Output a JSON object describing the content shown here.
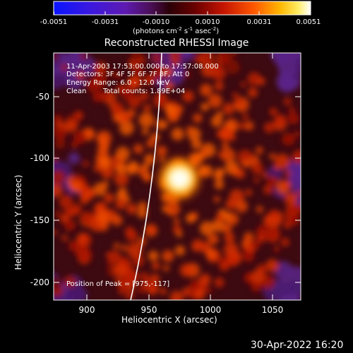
{
  "colorbar": {
    "tick_labels": [
      "-0.0051",
      "-0.0031",
      "-0.0010",
      "0.0010",
      "0.0031",
      "0.0051"
    ],
    "units_base": "(photons cm",
    "units_exp1": "-2",
    "units_mid1": " s",
    "units_exp2": "-1",
    "units_mid2": " asec",
    "units_exp3": "-2",
    "units_end": ")"
  },
  "title": "Reconstructed RHESSI Image",
  "annotations": {
    "time_range": "11-Apr-2003 17:53:00.000 to 17:57:08.000",
    "detectors": "Detectors: 3F 4F 5F 6F 7F 8F, Att 0",
    "energy_range": "Energy Range: 6.0 - 12.0 keV",
    "algorithm": "Clean",
    "total_counts": "Total counts: 1.89E+04",
    "peak_position": "Position of Peak = [975,-117]"
  },
  "axes": {
    "xlabel": "Heliocentric X (arcsec)",
    "ylabel": "Heliocentric Y (arcsec)",
    "x_ticks": [
      "900",
      "950",
      "1000",
      "1050"
    ],
    "y_ticks": [
      "-50",
      "-100",
      "-150",
      "-200"
    ]
  },
  "footer": {
    "timestamp": "30-Apr-2022 16:20"
  },
  "colors": {
    "background": "#000000",
    "axis": "#ffffff",
    "limb_line": "#ffffff"
  }
}
